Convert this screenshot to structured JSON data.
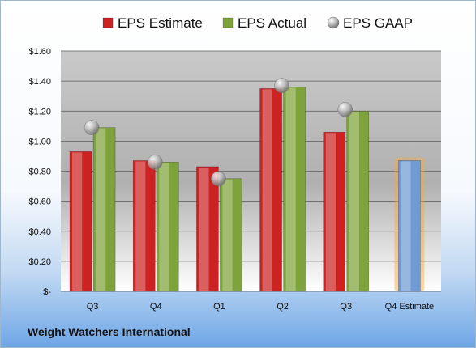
{
  "company": "Weight Watchers International",
  "chart_data": {
    "type": "bar",
    "categories": [
      "Q3",
      "Q4",
      "Q1",
      "Q2",
      "Q3",
      "Q4 Estimate"
    ],
    "series": [
      {
        "name": "EPS Estimate",
        "color": "#cc2222",
        "values": [
          0.93,
          0.87,
          0.83,
          1.35,
          1.06,
          null
        ]
      },
      {
        "name": "EPS Actual",
        "color": "#7ea33a",
        "values": [
          1.09,
          0.86,
          0.75,
          1.36,
          1.2,
          null
        ]
      },
      {
        "name": "EPS GAAP",
        "color": "#a8a8a8",
        "marker": "sphere",
        "values": [
          1.09,
          0.86,
          0.75,
          1.37,
          1.21,
          null
        ]
      }
    ],
    "forecast": {
      "category": "Q4 Estimate",
      "value": 0.87,
      "color": "#6f9bd6",
      "glow": "#f3a840"
    },
    "yticks": [
      "$1.60",
      "$1.40",
      "$1.20",
      "$1.00",
      "$0.80",
      "$0.60",
      "$0.40",
      "$0.20",
      "$-"
    ],
    "ylim": [
      0,
      1.6
    ],
    "grid": true,
    "legend": "top"
  }
}
